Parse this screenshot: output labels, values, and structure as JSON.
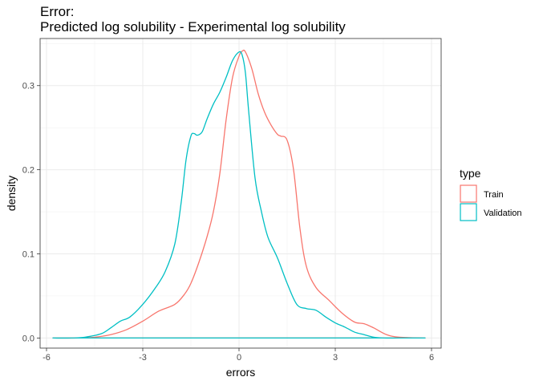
{
  "chart_data": {
    "type": "line",
    "title": [
      "Error:",
      "Predicted log solubility - Experimental log solubility"
    ],
    "xlabel": "errors",
    "ylabel": "density",
    "xlim": [
      -6.2,
      6.3
    ],
    "ylim": [
      -0.012,
      0.356
    ],
    "x_ticks": [
      -6,
      -3,
      0,
      3,
      6
    ],
    "x_tick_labels": [
      "-6",
      "-3",
      "0",
      "3",
      "6"
    ],
    "y_ticks": [
      0.0,
      0.1,
      0.2,
      0.3
    ],
    "y_tick_labels": [
      "0.0",
      "0.1",
      "0.2",
      "0.3"
    ],
    "grid": true,
    "legend": {
      "title": "type",
      "position": "right"
    },
    "series": [
      {
        "name": "Train",
        "color": "#F8766D",
        "x": [
          -5.8,
          -5.0,
          -4.5,
          -4.0,
          -3.5,
          -3.0,
          -2.5,
          -2.0,
          -1.7,
          -1.5,
          -1.25,
          -1.0,
          -0.8,
          -0.6,
          -0.4,
          -0.2,
          0.0,
          0.1,
          0.2,
          0.4,
          0.6,
          0.8,
          1.0,
          1.2,
          1.3,
          1.5,
          1.7,
          1.9,
          2.1,
          2.4,
          2.8,
          3.2,
          3.6,
          3.9,
          4.2,
          4.6,
          5.0,
          5.8
        ],
        "y": [
          0.0,
          0.0,
          0.001,
          0.004,
          0.01,
          0.02,
          0.032,
          0.04,
          0.052,
          0.065,
          0.09,
          0.12,
          0.15,
          0.195,
          0.26,
          0.31,
          0.335,
          0.341,
          0.34,
          0.32,
          0.29,
          0.268,
          0.253,
          0.242,
          0.24,
          0.235,
          0.2,
          0.13,
          0.085,
          0.06,
          0.045,
          0.03,
          0.019,
          0.017,
          0.012,
          0.004,
          0.001,
          0.0
        ]
      },
      {
        "name": "Validation",
        "color": "#00BFC4",
        "x": [
          -5.8,
          -5.2,
          -4.8,
          -4.3,
          -4.0,
          -3.7,
          -3.4,
          -3.0,
          -2.6,
          -2.3,
          -2.0,
          -1.8,
          -1.65,
          -1.5,
          -1.4,
          -1.3,
          -1.15,
          -1.0,
          -0.8,
          -0.6,
          -0.4,
          -0.2,
          0.0,
          0.1,
          0.2,
          0.3,
          0.5,
          0.7,
          0.9,
          1.2,
          1.5,
          1.8,
          2.1,
          2.4,
          2.7,
          3.0,
          3.3,
          3.6,
          3.9,
          4.2,
          4.5,
          5.0,
          5.8
        ],
        "y": [
          0.0,
          0.0,
          0.001,
          0.005,
          0.012,
          0.02,
          0.025,
          0.04,
          0.06,
          0.079,
          0.112,
          0.162,
          0.212,
          0.24,
          0.243,
          0.241,
          0.245,
          0.26,
          0.278,
          0.292,
          0.31,
          0.33,
          0.34,
          0.336,
          0.315,
          0.27,
          0.19,
          0.15,
          0.12,
          0.095,
          0.065,
          0.04,
          0.035,
          0.033,
          0.025,
          0.018,
          0.013,
          0.007,
          0.004,
          0.001,
          0.0,
          0.0,
          0.0
        ]
      }
    ]
  }
}
